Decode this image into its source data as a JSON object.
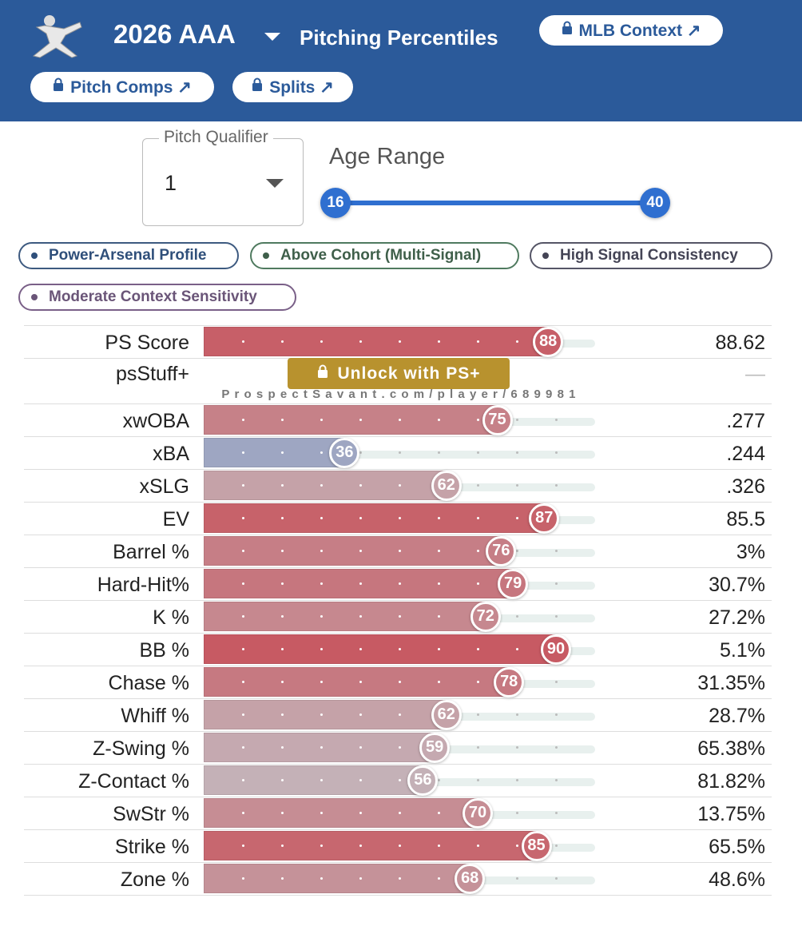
{
  "header": {
    "title": "2026 AAA",
    "subtitle": "Pitching Percentiles",
    "buttons": [
      "MLB Context ↗",
      "Pitch Comps ↗",
      "Splits ↗"
    ]
  },
  "filters": {
    "qualifier_label": "Pitch Qualifier",
    "qualifier_value": "1",
    "age_label": "Age Range",
    "age_min": 16,
    "age_max": 40
  },
  "tags": [
    "Power-Arsenal Profile",
    "Above Cohort (Multi-Signal)",
    "High Signal Consistency",
    "Moderate Context Sensitivity"
  ],
  "unlock": "Unlock with PS+",
  "watermark": "ProspectSavant.com/player/689981",
  "percentiles": {
    "xlim": [
      0,
      100
    ],
    "rows": [
      {
        "label": "PS Score",
        "percentile": 88,
        "value": "88.62"
      },
      {
        "label": "psStuff+",
        "percentile": null,
        "value": "—"
      },
      {
        "label": "xwOBA",
        "percentile": 75,
        "value": ".277"
      },
      {
        "label": "xBA",
        "percentile": 36,
        "value": ".244"
      },
      {
        "label": "xSLG",
        "percentile": 62,
        "value": ".326"
      },
      {
        "label": "EV",
        "percentile": 87,
        "value": "85.5"
      },
      {
        "label": "Barrel %",
        "percentile": 76,
        "value": "3%"
      },
      {
        "label": "Hard-Hit%",
        "percentile": 79,
        "value": "30.7%"
      },
      {
        "label": "K %",
        "percentile": 72,
        "value": "27.2%"
      },
      {
        "label": "BB %",
        "percentile": 90,
        "value": "5.1%"
      },
      {
        "label": "Chase %",
        "percentile": 78,
        "value": "31.35%"
      },
      {
        "label": "Whiff %",
        "percentile": 62,
        "value": "28.7%"
      },
      {
        "label": "Z-Swing %",
        "percentile": 59,
        "value": "65.38%"
      },
      {
        "label": "Z-Contact %",
        "percentile": 56,
        "value": "81.82%"
      },
      {
        "label": "SwStr %",
        "percentile": 70,
        "value": "13.75%"
      },
      {
        "label": "Strike %",
        "percentile": 85,
        "value": "65.5%"
      },
      {
        "label": "Zone %",
        "percentile": 68,
        "value": "48.6%"
      }
    ]
  }
}
